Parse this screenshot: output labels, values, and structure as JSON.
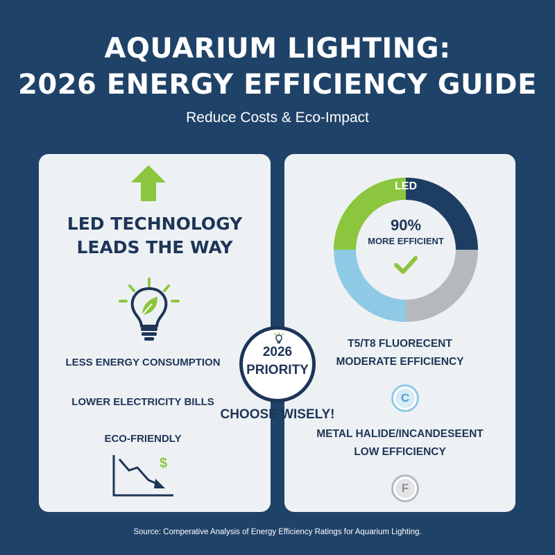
{
  "title_line1": "AQUARIUM LIGHTING:",
  "title_line2": "2026 ENERGY EFFICIENCY GUIDE",
  "subtitle": "Reduce Costs & Eco-Impact",
  "left_panel": {
    "heading_line1": "LED TECHNOLOGY",
    "heading_line2": "LEADS THE WAY",
    "benefits": [
      "LESS ENERGY CONSUMPTION",
      "LOWER ELECTRICITY BILLS",
      "ECO-FRIENDLY"
    ],
    "icons": [
      "up-arrow-icon",
      "eco-bulb-icon",
      "declining-cost-chart-icon"
    ]
  },
  "center_badge": {
    "line1": "2026",
    "line2": "PRIORITY",
    "tagline": "CHOOSE WISELY!",
    "icon": "small-bulb-icon"
  },
  "right_panel": {
    "donut": {
      "label": "LED",
      "center_value": "90%",
      "center_text": "MORE EFFICIENT",
      "icon": "check-icon",
      "segments_deg": [
        {
          "name": "green",
          "color": "#8cc63f",
          "start": 270,
          "end": 360
        },
        {
          "name": "navy",
          "color": "#1d3d63",
          "start": 0,
          "end": 90
        },
        {
          "name": "gray",
          "color": "#b5b9bd",
          "start": 90,
          "end": 180
        },
        {
          "name": "light-blue",
          "color": "#8ecae6",
          "start": 180,
          "end": 270
        }
      ]
    },
    "fluorescent_title": "T5/T8 FLUORECENT",
    "fluorescent_rating": "MODERATE EFFICIENCY",
    "fluorescent_grade": "C",
    "halide_title": "METAL HALIDE/INCANDESEENT",
    "halide_rating": "LOW EFFICIENCY",
    "halide_grade": "F"
  },
  "source": "Source: Comperative Analysis of Energy Efficiency Ratings for Aquarium Lighting.",
  "colors": {
    "background": "#1f4268",
    "panel": "#eef1f4",
    "navy": "#1d3557",
    "green": "#8cc63f",
    "light_blue": "#8ecae6",
    "gray": "#b5b9bd"
  }
}
